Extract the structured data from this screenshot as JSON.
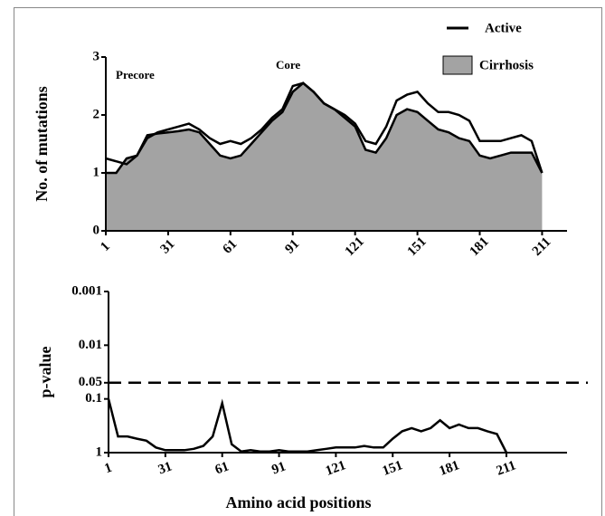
{
  "chart_data": [
    {
      "type": "area",
      "annotations": [
        "Precore",
        "Core"
      ],
      "ylabel": "No. of mutations",
      "x": [
        1,
        6,
        11,
        16,
        21,
        26,
        31,
        36,
        41,
        46,
        51,
        56,
        61,
        66,
        71,
        76,
        81,
        86,
        91,
        96,
        101,
        106,
        111,
        116,
        121,
        126,
        131,
        136,
        141,
        146,
        151,
        156,
        161,
        166,
        171,
        176,
        181,
        186,
        191,
        196,
        201,
        206,
        211
      ],
      "series": [
        {
          "name": "Cirrhosis",
          "color": "#000000",
          "fill": "#a3a3a3",
          "values": [
            1.0,
            1.0,
            1.25,
            1.3,
            1.65,
            1.68,
            1.7,
            1.72,
            1.75,
            1.7,
            1.5,
            1.3,
            1.25,
            1.3,
            1.5,
            1.7,
            1.9,
            2.05,
            2.4,
            2.55,
            2.4,
            2.2,
            2.1,
            1.95,
            1.8,
            1.4,
            1.35,
            1.6,
            2.0,
            2.1,
            2.05,
            1.9,
            1.75,
            1.7,
            1.6,
            1.55,
            1.3,
            1.25,
            1.3,
            1.35,
            1.35,
            1.35,
            1.0
          ]
        },
        {
          "name": "Active",
          "color": "#000000",
          "values": [
            1.25,
            1.2,
            1.15,
            1.3,
            1.6,
            1.7,
            1.75,
            1.8,
            1.85,
            1.75,
            1.6,
            1.5,
            1.55,
            1.5,
            1.6,
            1.75,
            1.95,
            2.1,
            2.5,
            2.55,
            2.4,
            2.2,
            2.1,
            2.0,
            1.85,
            1.55,
            1.5,
            1.8,
            2.25,
            2.35,
            2.4,
            2.2,
            2.05,
            2.05,
            2.0,
            1.9,
            1.55,
            1.55,
            1.55,
            1.6,
            1.65,
            1.55,
            1.0
          ]
        }
      ],
      "xlim": [
        1,
        223
      ],
      "xticks": [
        1,
        31,
        61,
        91,
        121,
        151,
        181,
        211
      ],
      "ylim": [
        0,
        3
      ],
      "yticks": [
        0,
        1,
        2,
        3
      ]
    },
    {
      "type": "line",
      "xlabel": "Amino acid positions",
      "ylabel": "p-value",
      "log_y": true,
      "x": [
        1,
        6,
        11,
        16,
        21,
        26,
        31,
        36,
        41,
        46,
        51,
        56,
        61,
        66,
        71,
        76,
        81,
        86,
        91,
        96,
        101,
        106,
        111,
        116,
        121,
        126,
        131,
        136,
        141,
        146,
        151,
        156,
        161,
        166,
        171,
        176,
        181,
        186,
        191,
        196,
        201,
        206,
        211
      ],
      "color": "#000000",
      "values": [
        0.1,
        0.5,
        0.5,
        0.55,
        0.6,
        0.8,
        0.9,
        0.9,
        0.9,
        0.85,
        0.75,
        0.5,
        0.12,
        0.7,
        0.95,
        0.9,
        0.95,
        0.95,
        0.9,
        0.95,
        0.95,
        0.95,
        0.9,
        0.85,
        0.8,
        0.8,
        0.8,
        0.75,
        0.8,
        0.8,
        0.55,
        0.4,
        0.35,
        0.4,
        0.35,
        0.25,
        0.35,
        0.3,
        0.35,
        0.35,
        0.4,
        0.45,
        1
      ],
      "hline": {
        "value": 0.05,
        "style": "dashed"
      },
      "xlim": [
        1,
        243
      ],
      "xticks": [
        1,
        31,
        61,
        91,
        121,
        151,
        181,
        211
      ],
      "ylim": [
        1,
        0.001
      ],
      "yticks": [
        0.001,
        0.01,
        0.05,
        0.1,
        1
      ]
    }
  ]
}
